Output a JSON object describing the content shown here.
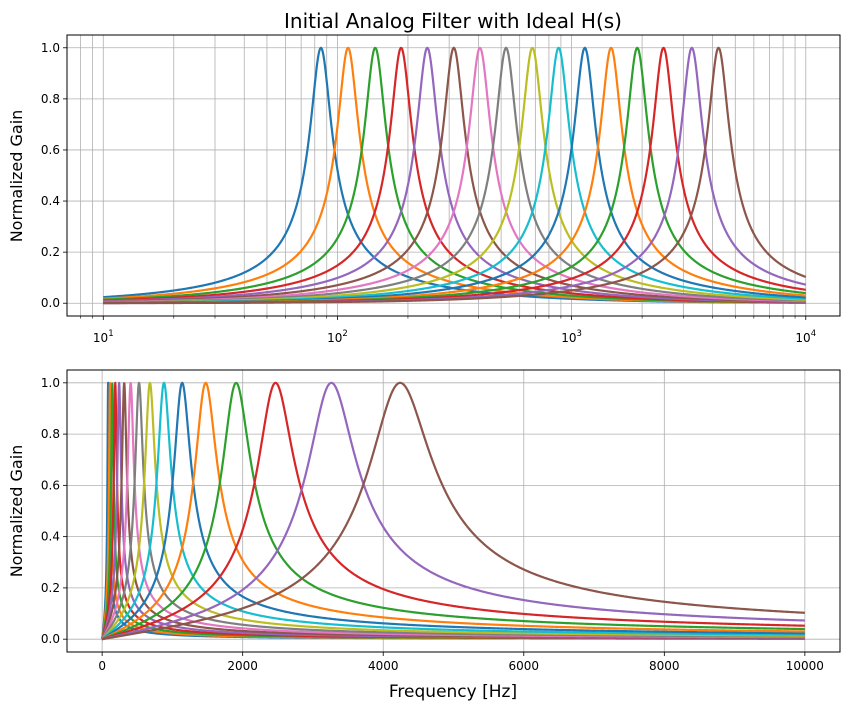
{
  "chart_data": [
    {
      "type": "line",
      "title": "Initial Analog Filter with Ideal H(s)",
      "xlabel": "",
      "ylabel": "Normalized Gain",
      "xscale": "log",
      "xlim": [
        7,
        14000
      ],
      "ylim": [
        -0.05,
        1.05
      ],
      "x_range": [
        10,
        10000
      ],
      "grid": "major and minor",
      "x_ticks": [
        10,
        100,
        1000,
        10000
      ],
      "x_tick_labels": [
        {
          "base": "10",
          "exp": "1"
        },
        {
          "base": "10",
          "exp": "2"
        },
        {
          "base": "10",
          "exp": "3"
        },
        {
          "base": "10",
          "exp": "4"
        }
      ],
      "y_ticks": [
        0.0,
        0.2,
        0.4,
        0.6,
        0.8,
        1.0
      ],
      "y_tick_labels": [
        "0.0",
        "0.2",
        "0.4",
        "0.6",
        "0.8",
        "1.0"
      ]
    },
    {
      "type": "line",
      "title": "",
      "xlabel": "Frequency [Hz]",
      "ylabel": "Normalized Gain",
      "xscale": "linear",
      "xlim": [
        -500,
        10500
      ],
      "ylim": [
        -0.05,
        1.05
      ],
      "x_range": [
        0,
        10000
      ],
      "grid": "major",
      "x_ticks": [
        0,
        2000,
        4000,
        6000,
        8000,
        10000
      ],
      "x_tick_labels": [
        "0",
        "2000",
        "4000",
        "6000",
        "8000",
        "10000"
      ],
      "y_ticks": [
        0.0,
        0.2,
        0.4,
        0.6,
        0.8,
        1.0
      ],
      "y_tick_labels": [
        "0.0",
        "0.2",
        "0.4",
        "0.6",
        "0.8",
        "1.0"
      ]
    }
  ],
  "series": {
    "model": "second-order bandpass, gain = 1 / sqrt(1 + Q^2 (f/fc - fc/f)^2)",
    "Q": 5,
    "center_frequencies_hz": [
      85,
      111,
      145,
      187,
      242,
      314,
      406,
      525,
      680,
      880,
      1139,
      1474,
      1907,
      2468,
      3262,
      4241
    ],
    "colors": [
      "#1f77b4",
      "#ff7f0e",
      "#2ca02c",
      "#d62728",
      "#9467bd",
      "#8c564b",
      "#e377c2",
      "#7f7f7f",
      "#bcbd22",
      "#17becf",
      "#1f77b4",
      "#ff7f0e",
      "#2ca02c",
      "#d62728",
      "#9467bd",
      "#8c564b"
    ]
  }
}
